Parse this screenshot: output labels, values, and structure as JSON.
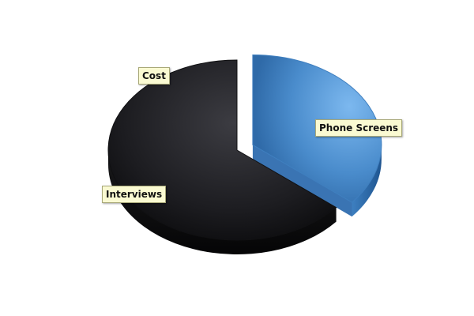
{
  "chart_data": {
    "type": "pie",
    "style": "3d-exploded",
    "title": "",
    "legend": "none",
    "slices": [
      {
        "label": "Phone Screens",
        "value": 36,
        "color": "#5b9bd5",
        "exploded": true
      },
      {
        "label": "Interviews",
        "value": 64,
        "color": "#222226",
        "exploded": false
      },
      {
        "label": "Cost",
        "value": 0,
        "color": "#222226",
        "exploded": false
      }
    ]
  }
}
